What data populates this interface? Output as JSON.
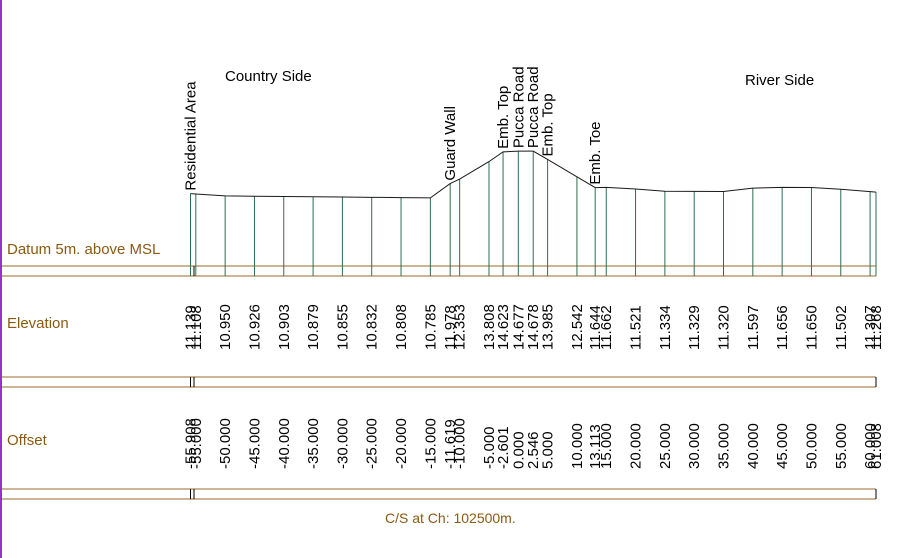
{
  "side_labels": {
    "left": "Country Side",
    "right": "River Side"
  },
  "row_labels": {
    "datum": "Datum 5m. above MSL",
    "elevation": "Elevation",
    "offset": "Offset"
  },
  "caption": "C/S at Ch: 102500m.",
  "colors": {
    "profile": "#1a1a1a",
    "verticals": "#2e6e4e",
    "bands": "#9b6a2a",
    "labels": "#8b5a12",
    "border": "#9b30c8"
  },
  "chart_data": {
    "type": "line",
    "title": "",
    "points": [
      {
        "offset": "-55.908",
        "elevation": "11.139",
        "label": "Residential Area"
      },
      {
        "offset": "-55.000",
        "elevation": "11.108",
        "label": ""
      },
      {
        "offset": "-50.000",
        "elevation": "10.950",
        "label": ""
      },
      {
        "offset": "-45.000",
        "elevation": "10.926",
        "label": ""
      },
      {
        "offset": "-40.000",
        "elevation": "10.903",
        "label": ""
      },
      {
        "offset": "-35.000",
        "elevation": "10.879",
        "label": ""
      },
      {
        "offset": "-30.000",
        "elevation": "10.855",
        "label": ""
      },
      {
        "offset": "-25.000",
        "elevation": "10.832",
        "label": ""
      },
      {
        "offset": "-20.000",
        "elevation": "10.808",
        "label": ""
      },
      {
        "offset": "-15.000",
        "elevation": "10.785",
        "label": ""
      },
      {
        "offset": "-11.619",
        "elevation": "11.978",
        "label": "Guard Wall"
      },
      {
        "offset": "-10.000",
        "elevation": "12.353",
        "label": ""
      },
      {
        "offset": "-5.000",
        "elevation": "13.808",
        "label": ""
      },
      {
        "offset": "-2.601",
        "elevation": "14.623",
        "label": "Emb. Top"
      },
      {
        "offset": "0.000",
        "elevation": "14.677",
        "label": "Pucca Road"
      },
      {
        "offset": "2.546",
        "elevation": "14.678",
        "label": "Pucca Road"
      },
      {
        "offset": "5.000",
        "elevation": "13.985",
        "label": "Emb. Top"
      },
      {
        "offset": "10.000",
        "elevation": "12.542",
        "label": ""
      },
      {
        "offset": "13.113",
        "elevation": "11.644",
        "label": "Emb. Toe"
      },
      {
        "offset": "15.000",
        "elevation": "11.662",
        "label": ""
      },
      {
        "offset": "20.000",
        "elevation": "11.521",
        "label": ""
      },
      {
        "offset": "25.000",
        "elevation": "11.334",
        "label": ""
      },
      {
        "offset": "30.000",
        "elevation": "11.329",
        "label": ""
      },
      {
        "offset": "35.000",
        "elevation": "11.320",
        "label": ""
      },
      {
        "offset": "40.000",
        "elevation": "11.597",
        "label": ""
      },
      {
        "offset": "45.000",
        "elevation": "11.656",
        "label": ""
      },
      {
        "offset": "50.000",
        "elevation": "11.650",
        "label": ""
      },
      {
        "offset": "55.000",
        "elevation": "11.502",
        "label": ""
      },
      {
        "offset": "60.000",
        "elevation": "11.307",
        "label": ""
      },
      {
        "offset": "61.008",
        "elevation": "11.268",
        "label": ""
      }
    ],
    "datum": 5
  }
}
